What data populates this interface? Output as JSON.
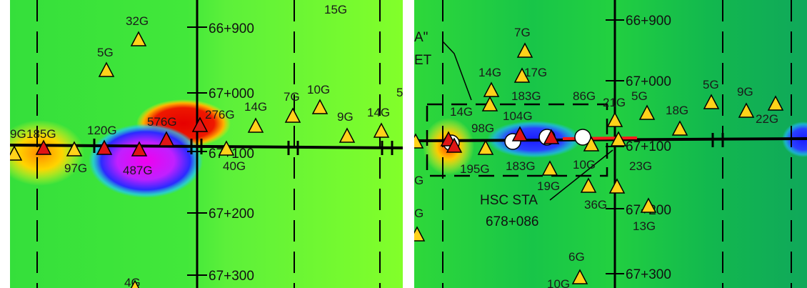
{
  "colors": {
    "background_field": "#33e03a",
    "field_light": "#7dff2a",
    "red_anomaly": "#e60000",
    "magenta_anomaly": "#e000e0",
    "blue_anomaly": "#2020ff",
    "yellow_anomaly": "#ffd000",
    "marker_yellow": "#ffd21a",
    "marker_red": "#e01515",
    "pipeline_red": "#ff1a1a",
    "line_black": "#000000"
  },
  "panels": [
    {
      "id": "left",
      "stations": [
        "66+900",
        "67+000",
        "67+100",
        "67+200",
        "67+300"
      ],
      "markers": [
        {
          "label": "32G",
          "kind": "yellow"
        },
        {
          "label": "5G",
          "kind": "yellow"
        },
        {
          "label": "15G",
          "kind": "yellow"
        },
        {
          "label": "9G",
          "kind": "yellow"
        },
        {
          "label": "185G",
          "kind": "red"
        },
        {
          "label": "120G",
          "kind": "red"
        },
        {
          "label": "576G",
          "kind": "red"
        },
        {
          "label": "276G",
          "kind": "red"
        },
        {
          "label": "97G",
          "kind": "yellow"
        },
        {
          "label": "487G",
          "kind": "red"
        },
        {
          "label": "14G",
          "kind": "yellow"
        },
        {
          "label": "7G",
          "kind": "yellow"
        },
        {
          "label": "10G",
          "kind": "yellow"
        },
        {
          "label": "9G",
          "kind": "yellow"
        },
        {
          "label": "14G",
          "kind": "yellow"
        },
        {
          "label": "40G",
          "kind": "yellow"
        },
        {
          "label": "4G",
          "kind": "yellow"
        },
        {
          "label": "5",
          "kind": "yellow"
        }
      ]
    },
    {
      "id": "right",
      "stations": [
        "66+900",
        "67+000",
        "67+100",
        "67+200",
        "67+300"
      ],
      "callout_fragments": [
        "A\"",
        "ET"
      ],
      "hsc_label": "HSC STA",
      "hsc_station": "678+086",
      "markers": [
        {
          "label": "7G",
          "kind": "yellow"
        },
        {
          "label": "14G",
          "kind": "yellow"
        },
        {
          "label": "17G",
          "kind": "yellow"
        },
        {
          "label": "183G",
          "kind": "none"
        },
        {
          "label": "86G",
          "kind": "none"
        },
        {
          "label": "21G",
          "kind": "yellow"
        },
        {
          "label": "5G",
          "kind": "yellow"
        },
        {
          "label": "5G",
          "kind": "yellow"
        },
        {
          "label": "9G",
          "kind": "yellow"
        },
        {
          "label": "14G",
          "kind": "yellow"
        },
        {
          "label": "104G",
          "kind": "red"
        },
        {
          "label": "18G",
          "kind": "yellow"
        },
        {
          "label": "22G",
          "kind": "yellow"
        },
        {
          "label": "98G",
          "kind": "yellow"
        },
        {
          "label": "195G",
          "kind": "red"
        },
        {
          "label": "183G",
          "kind": "yellow"
        },
        {
          "label": "10G",
          "kind": "yellow"
        },
        {
          "label": "23G",
          "kind": "yellow"
        },
        {
          "label": "19G",
          "kind": "yellow"
        },
        {
          "label": "36G",
          "kind": "yellow"
        },
        {
          "label": "13G",
          "kind": "yellow"
        },
        {
          "label": "6G",
          "kind": "yellow"
        },
        {
          "label": "10G",
          "kind": "yellow"
        },
        {
          "label": "G",
          "kind": "yellow"
        },
        {
          "label": "G",
          "kind": "yellow"
        }
      ]
    }
  ]
}
